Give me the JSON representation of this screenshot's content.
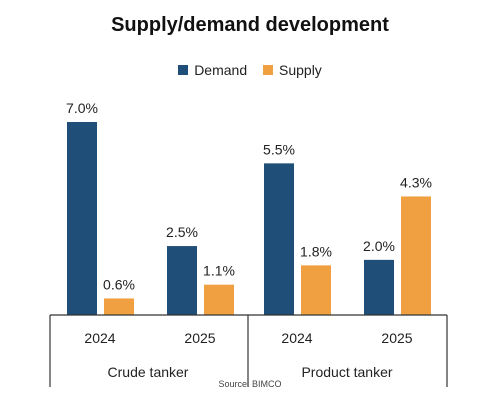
{
  "chart_data": {
    "type": "bar",
    "title": "Supply/demand development",
    "groups": [
      {
        "name": "Crude tanker",
        "categories": [
          "2024",
          "2025"
        ]
      },
      {
        "name": "Product tanker",
        "categories": [
          "2024",
          "2025"
        ]
      }
    ],
    "series": [
      {
        "name": "Demand",
        "color": "#1f4e79",
        "values": [
          7.0,
          2.5,
          5.5,
          2.0
        ],
        "labels": [
          "7.0%",
          "2.5%",
          "5.5%",
          "2.0%"
        ]
      },
      {
        "name": "Supply",
        "color": "#f0a040",
        "values": [
          0.6,
          1.1,
          1.8,
          4.3
        ],
        "labels": [
          "0.6%",
          "1.1%",
          "1.8%",
          "4.3%"
        ]
      }
    ],
    "unit": "%",
    "ylim": [
      0,
      7.0
    ],
    "grid": false,
    "legend_position": "top"
  },
  "source": "Source: BIMCO"
}
